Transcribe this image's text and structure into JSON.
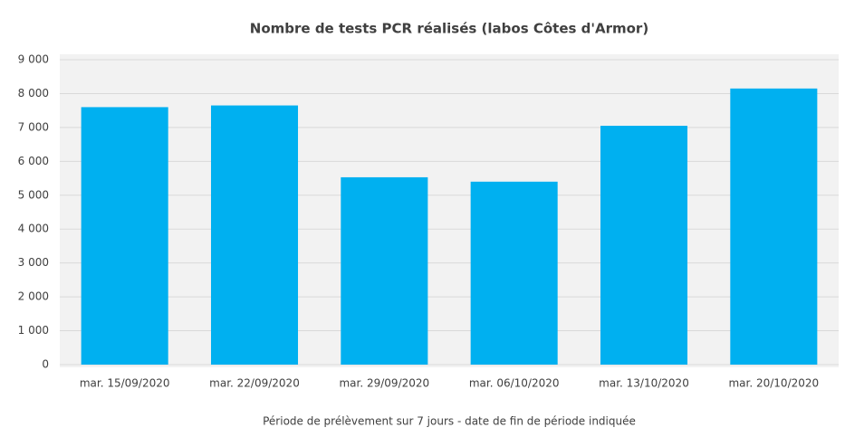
{
  "chart_data": {
    "type": "bar",
    "title": "Nombre de tests PCR réalisés (labos Côtes d'Armor)",
    "x_label": "Période de prélèvement sur 7 jours - date de fin de période indiquée",
    "categories": [
      "mar. 15/09/2020",
      "mar. 22/09/2020",
      "mar. 29/09/2020",
      "mar. 06/10/2020",
      "mar. 13/10/2020",
      "mar. 20/10/2020"
    ],
    "values": [
      7600,
      7650,
      5530,
      5400,
      7050,
      8150
    ],
    "color": "#00b0f0",
    "ylim": [
      0,
      9000
    ],
    "yticks": [
      0,
      {
        "value": 1000,
        "label": "1 000"
      },
      {
        "value": 2000,
        "label": "2 000"
      },
      {
        "value": 3000,
        "label": "3 000"
      },
      {
        "value": 4000,
        "label": "4 000"
      },
      {
        "value": 5000,
        "label": "5 000"
      },
      {
        "value": 6000,
        "label": "6 000"
      },
      {
        "value": 7000,
        "label": "7 000"
      },
      {
        "value": 8000,
        "label": "8 000"
      },
      {
        "value": 9000,
        "label": "9 000"
      }
    ],
    "grid": true
  }
}
